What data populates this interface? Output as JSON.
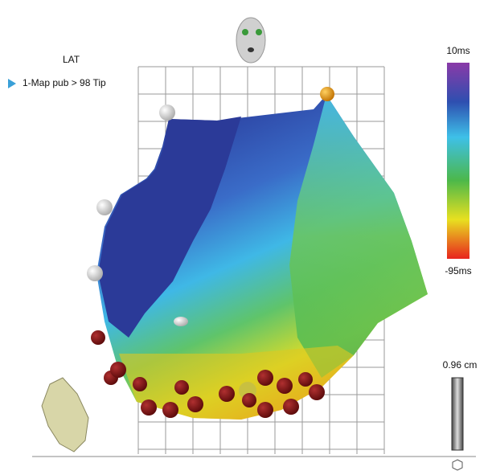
{
  "legend": {
    "title": "LAT",
    "items": [
      {
        "label": "1-Map pub > 98 Tip"
      }
    ]
  },
  "color_scale": {
    "max_label": "10ms",
    "min_label": "-95ms"
  },
  "scale_bar": {
    "label": "0.96 cm"
  }
}
